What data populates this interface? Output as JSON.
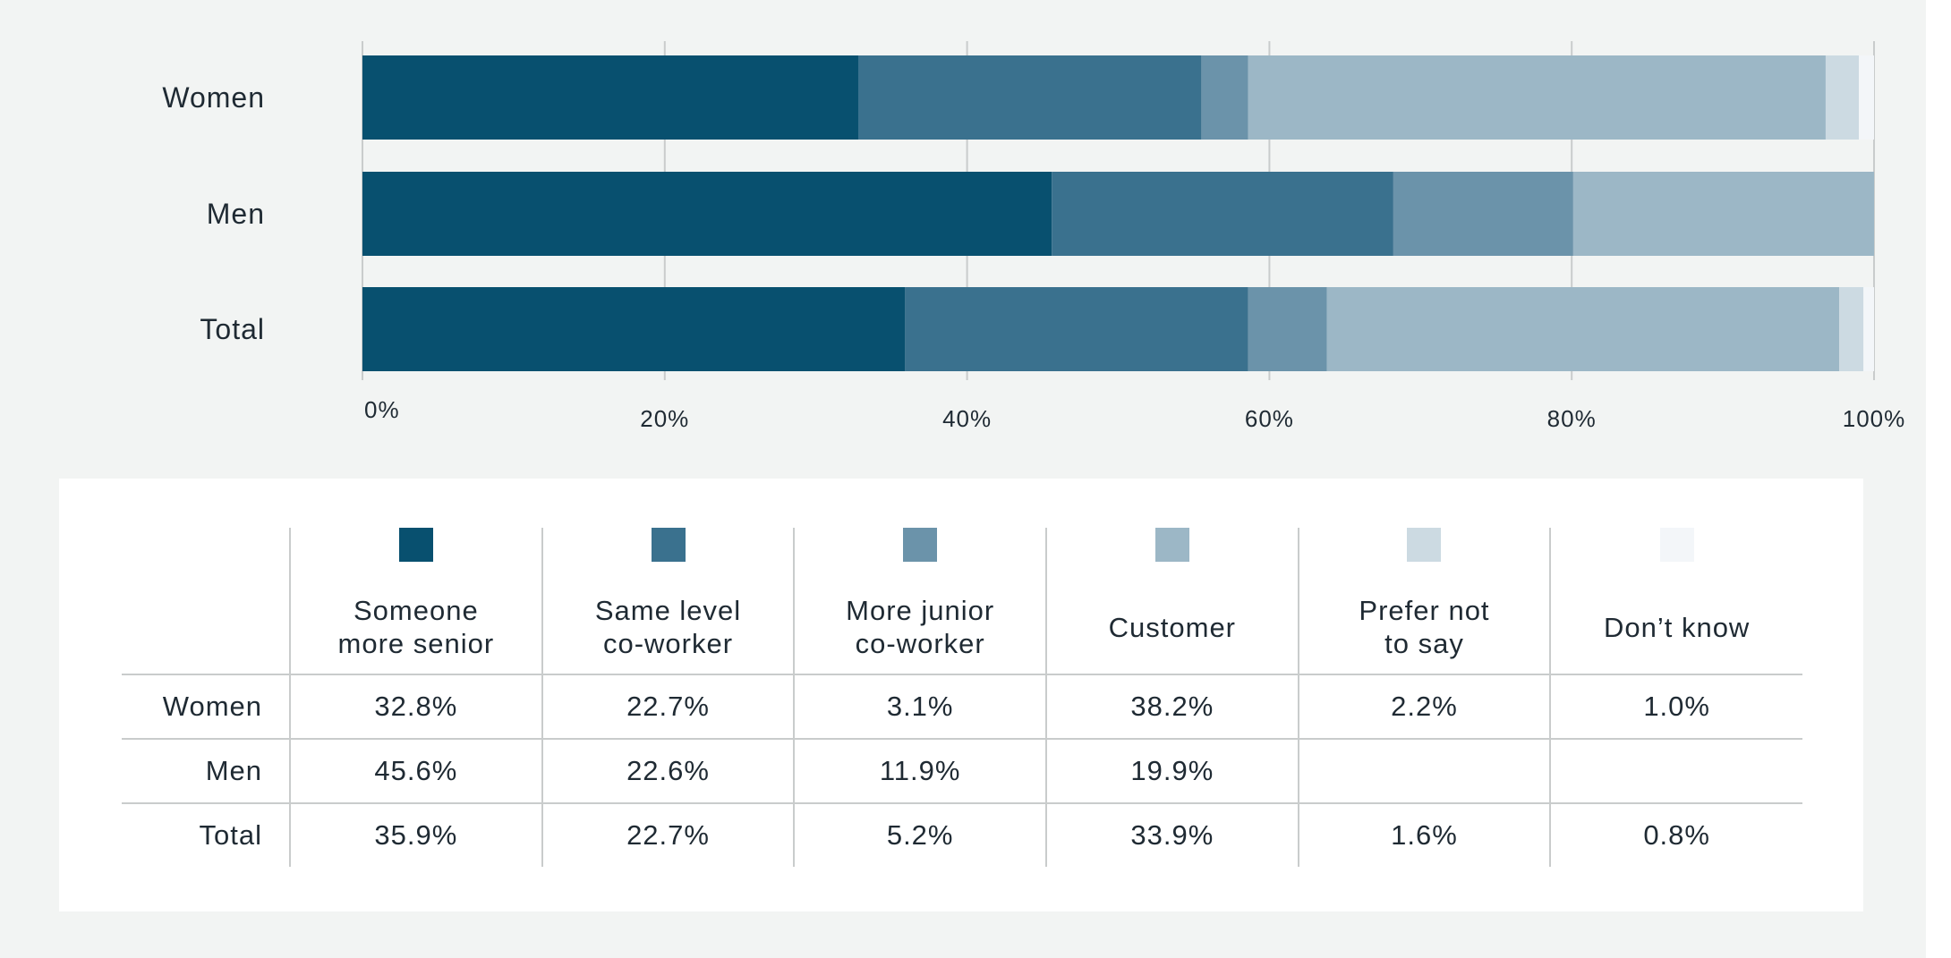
{
  "chart_data": {
    "type": "bar",
    "orientation": "horizontal",
    "stacked": true,
    "categories": [
      "Women",
      "Men",
      "Total"
    ],
    "series": [
      {
        "name": "Someone more senior",
        "color": "#08506f",
        "values": [
          32.8,
          45.6,
          35.9
        ]
      },
      {
        "name": "Same level co-worker",
        "color": "#3a718e",
        "values": [
          22.7,
          22.6,
          22.7
        ]
      },
      {
        "name": "More junior co-worker",
        "color": "#6b93aa",
        "values": [
          3.1,
          11.9,
          5.2
        ]
      },
      {
        "name": "Customer",
        "color": "#9cb7c6",
        "values": [
          38.2,
          19.9,
          33.9
        ]
      },
      {
        "name": "Prefer not to say",
        "color": "#ccdae2",
        "values": [
          2.2,
          null,
          1.6
        ]
      },
      {
        "name": "Don’t know",
        "color": "#f3f6f9",
        "values": [
          1.0,
          null,
          0.8
        ]
      }
    ],
    "xlim": [
      0,
      100
    ],
    "xticks": [
      "0%",
      "20%",
      "40%",
      "60%",
      "80%",
      "100%"
    ],
    "grid": true,
    "legend_position": "bottom table"
  },
  "legend": {
    "headers": [
      [
        "Someone",
        "more senior"
      ],
      [
        "Same level",
        "co-worker"
      ],
      [
        "More junior",
        "co-worker"
      ],
      [
        "Customer"
      ],
      [
        "Prefer not",
        "to say"
      ],
      [
        "Don’t know"
      ]
    ],
    "rows": [
      {
        "label": "Women",
        "cells": [
          "32.8%",
          "22.7%",
          "3.1%",
          "38.2%",
          "2.2%",
          "1.0%"
        ]
      },
      {
        "label": "Men",
        "cells": [
          "45.6%",
          "22.6%",
          "11.9%",
          "19.9%",
          "",
          ""
        ]
      },
      {
        "label": "Total",
        "cells": [
          "35.9%",
          "22.7%",
          "5.2%",
          "33.9%",
          "1.6%",
          "0.8%"
        ]
      }
    ]
  },
  "colors": {
    "background": "#f2f4f3",
    "panel": "#ffffff",
    "gridline": "#c9cccc",
    "text": "#1f2a33"
  }
}
